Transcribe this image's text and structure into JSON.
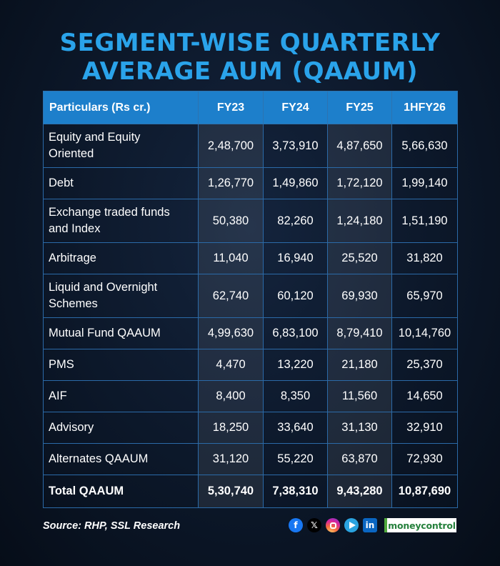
{
  "title": {
    "line1": "SEGMENT-WISE QUARTERLY",
    "line2": "AVERAGE AUM (QAAUM)"
  },
  "table": {
    "headers": [
      "Particulars (Rs cr.)",
      "FY23",
      "FY24",
      "FY25",
      "1HFY26"
    ],
    "rows": [
      {
        "label": [
          "Equity and Equity",
          "Oriented"
        ],
        "values": [
          "2,48,700",
          "3,73,910",
          "4,87,650",
          "5,66,630"
        ]
      },
      {
        "label": [
          "Debt"
        ],
        "values": [
          "1,26,770",
          "1,49,860",
          "1,72,120",
          "1,99,140"
        ]
      },
      {
        "label": [
          "Exchange traded funds",
          "and Index"
        ],
        "values": [
          "50,380",
          "82,260",
          "1,24,180",
          "1,51,190"
        ]
      },
      {
        "label": [
          "Arbitrage"
        ],
        "values": [
          "11,040",
          "16,940",
          "25,520",
          "31,820"
        ]
      },
      {
        "label": [
          "Liquid and Overnight",
          "Schemes"
        ],
        "values": [
          "62,740",
          "60,120",
          "69,930",
          "65,970"
        ]
      },
      {
        "label": [
          "Mutual Fund QAAUM"
        ],
        "values": [
          "4,99,630",
          "6,83,100",
          "8,79,410",
          "10,14,760"
        ]
      },
      {
        "label": [
          "PMS"
        ],
        "values": [
          "4,470",
          "13,220",
          "21,180",
          "25,370"
        ]
      },
      {
        "label": [
          "AIF"
        ],
        "values": [
          "8,400",
          "8,350",
          "11,560",
          "14,650"
        ]
      },
      {
        "label": [
          "Advisory"
        ],
        "values": [
          "18,250",
          "33,640",
          "31,130",
          "32,910"
        ]
      },
      {
        "label": [
          "Alternates QAAUM"
        ],
        "values": [
          "31,120",
          "55,220",
          "63,870",
          "72,930"
        ]
      },
      {
        "label": [
          "Total QAAUM"
        ],
        "values": [
          "5,30,740",
          "7,38,310",
          "9,43,280",
          "10,87,690"
        ],
        "total": true
      }
    ]
  },
  "footer": {
    "source": "Source: RHP, SSL Research",
    "social_icons": [
      "facebook-icon",
      "x-icon",
      "instagram-icon",
      "telegram-icon",
      "linkedin-icon"
    ],
    "facebook_glyph": "f",
    "x_glyph": "𝕏",
    "linkedin_glyph": "in",
    "brand": "moneycontrol"
  },
  "colors": {
    "title": "#2aa3ea",
    "header_bg": "#1d7fcb",
    "background": "#0b1627",
    "brand_green": "#25803c"
  }
}
